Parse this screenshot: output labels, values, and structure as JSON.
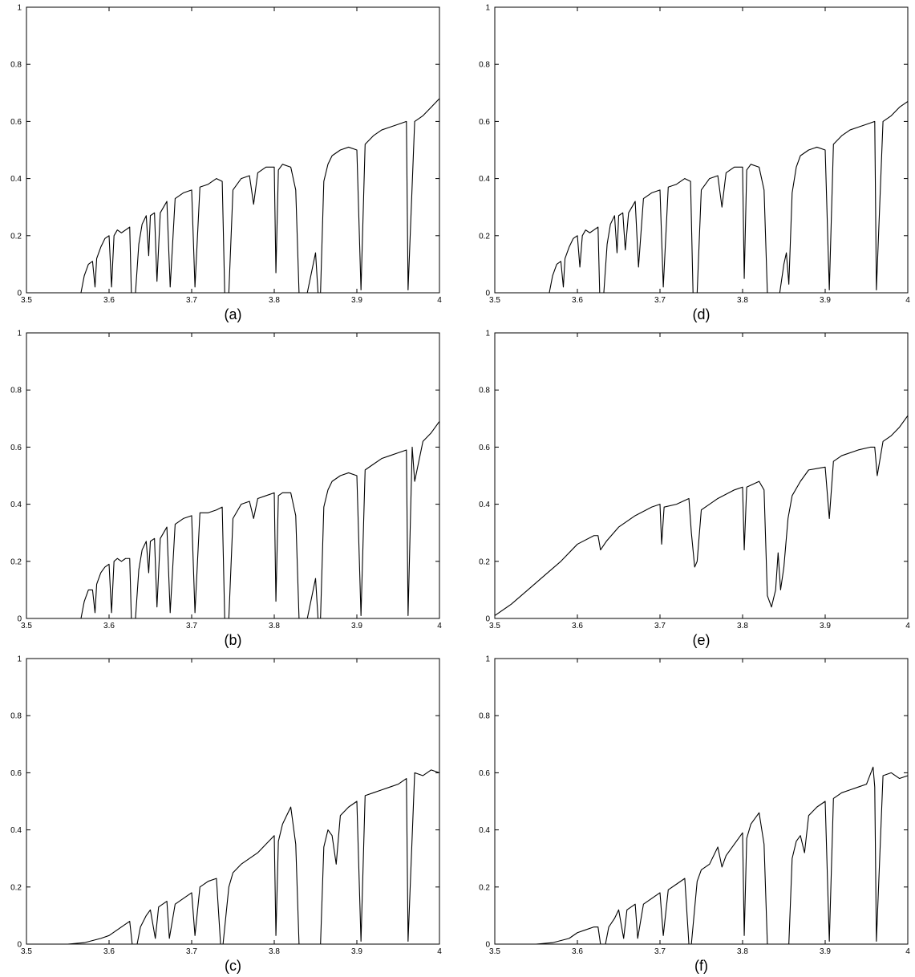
{
  "line_color": "#000000",
  "chart_data": [
    {
      "type": "line",
      "label": "(a)",
      "xlim": [
        3.5,
        4
      ],
      "ylim": [
        0,
        1
      ],
      "xticks": [
        "3.5",
        "3.6",
        "3.7",
        "3.8",
        "3.9",
        "4"
      ],
      "yticks": [
        "0",
        "0.2",
        "0.4",
        "0.6",
        "0.8",
        "1"
      ],
      "x": [
        3.5,
        3.566,
        3.57,
        3.575,
        3.58,
        3.583,
        3.585,
        3.59,
        3.595,
        3.6,
        3.603,
        3.606,
        3.61,
        3.615,
        3.62,
        3.625,
        3.627,
        3.632,
        3.636,
        3.64,
        3.645,
        3.648,
        3.65,
        3.655,
        3.658,
        3.662,
        3.666,
        3.67,
        3.674,
        3.68,
        3.69,
        3.7,
        3.704,
        3.71,
        3.72,
        3.73,
        3.737,
        3.74,
        3.745,
        3.75,
        3.76,
        3.77,
        3.775,
        3.78,
        3.79,
        3.8,
        3.802,
        3.805,
        3.81,
        3.82,
        3.826,
        3.83,
        3.84,
        3.85,
        3.853,
        3.856,
        3.86,
        3.865,
        3.87,
        3.88,
        3.89,
        3.9,
        3.905,
        3.91,
        3.92,
        3.93,
        3.94,
        3.95,
        3.96,
        3.962,
        3.97,
        3.98,
        3.99,
        4.0
      ],
      "y": [
        0,
        0,
        0.06,
        0.1,
        0.11,
        0.02,
        0.12,
        0.16,
        0.19,
        0.2,
        0.02,
        0.2,
        0.22,
        0.21,
        0.22,
        0.23,
        0.0,
        0.0,
        0.17,
        0.24,
        0.27,
        0.13,
        0.27,
        0.28,
        0.04,
        0.28,
        0.3,
        0.32,
        0.02,
        0.33,
        0.35,
        0.36,
        0.02,
        0.37,
        0.38,
        0.4,
        0.39,
        0.0,
        0.0,
        0.36,
        0.4,
        0.41,
        0.31,
        0.42,
        0.44,
        0.44,
        0.07,
        0.43,
        0.45,
        0.44,
        0.36,
        0.0,
        0.0,
        0.14,
        0.0,
        0.0,
        0.39,
        0.45,
        0.48,
        0.5,
        0.51,
        0.5,
        0.01,
        0.52,
        0.55,
        0.57,
        0.58,
        0.59,
        0.6,
        0.01,
        0.6,
        0.62,
        0.65,
        0.68
      ]
    },
    {
      "type": "line",
      "label": "(b)",
      "xlim": [
        3.5,
        4
      ],
      "ylim": [
        0,
        1
      ],
      "xticks": [
        "3.5",
        "3.6",
        "3.7",
        "3.8",
        "3.9",
        "4"
      ],
      "yticks": [
        "0",
        "0.2",
        "0.4",
        "0.6",
        "0.8",
        "1"
      ],
      "x": [
        3.5,
        3.566,
        3.57,
        3.575,
        3.58,
        3.583,
        3.585,
        3.59,
        3.595,
        3.6,
        3.603,
        3.606,
        3.61,
        3.615,
        3.62,
        3.625,
        3.627,
        3.632,
        3.636,
        3.64,
        3.645,
        3.648,
        3.65,
        3.655,
        3.658,
        3.662,
        3.666,
        3.67,
        3.674,
        3.68,
        3.69,
        3.7,
        3.704,
        3.71,
        3.72,
        3.73,
        3.737,
        3.74,
        3.745,
        3.75,
        3.76,
        3.77,
        3.775,
        3.78,
        3.79,
        3.8,
        3.802,
        3.805,
        3.81,
        3.82,
        3.826,
        3.83,
        3.84,
        3.85,
        3.853,
        3.856,
        3.86,
        3.865,
        3.87,
        3.88,
        3.89,
        3.9,
        3.905,
        3.91,
        3.92,
        3.93,
        3.94,
        3.95,
        3.96,
        3.962,
        3.967,
        3.97,
        3.98,
        3.99,
        4.0
      ],
      "y": [
        0,
        0,
        0.06,
        0.1,
        0.1,
        0.02,
        0.12,
        0.16,
        0.18,
        0.19,
        0.02,
        0.2,
        0.21,
        0.2,
        0.21,
        0.21,
        0.0,
        0.0,
        0.17,
        0.24,
        0.27,
        0.16,
        0.27,
        0.28,
        0.04,
        0.28,
        0.3,
        0.32,
        0.02,
        0.33,
        0.35,
        0.36,
        0.02,
        0.37,
        0.37,
        0.38,
        0.39,
        0.0,
        0.0,
        0.35,
        0.4,
        0.41,
        0.35,
        0.42,
        0.43,
        0.44,
        0.06,
        0.43,
        0.44,
        0.44,
        0.36,
        0.0,
        0.0,
        0.14,
        0.0,
        0.0,
        0.39,
        0.45,
        0.48,
        0.5,
        0.51,
        0.5,
        0.01,
        0.52,
        0.54,
        0.56,
        0.57,
        0.58,
        0.59,
        0.01,
        0.6,
        0.48,
        0.62,
        0.65,
        0.69
      ]
    },
    {
      "type": "line",
      "label": "(c)",
      "xlim": [
        3.5,
        4
      ],
      "ylim": [
        0,
        1
      ],
      "xticks": [
        "3.5",
        "3.6",
        "3.7",
        "3.8",
        "3.9",
        "4"
      ],
      "yticks": [
        "0",
        "0.2",
        "0.4",
        "0.6",
        "0.8",
        "1"
      ],
      "x": [
        3.5,
        3.55,
        3.57,
        3.59,
        3.6,
        3.61,
        3.62,
        3.625,
        3.628,
        3.634,
        3.638,
        3.645,
        3.65,
        3.656,
        3.66,
        3.67,
        3.673,
        3.68,
        3.69,
        3.7,
        3.704,
        3.71,
        3.72,
        3.73,
        3.735,
        3.738,
        3.745,
        3.75,
        3.76,
        3.77,
        3.78,
        3.79,
        3.8,
        3.802,
        3.805,
        3.81,
        3.815,
        3.82,
        3.826,
        3.83,
        3.85,
        3.856,
        3.86,
        3.865,
        3.87,
        3.875,
        3.88,
        3.89,
        3.9,
        3.905,
        3.91,
        3.92,
        3.93,
        3.94,
        3.95,
        3.96,
        3.962,
        3.97,
        3.98,
        3.99,
        4.0
      ],
      "y": [
        0,
        0.0,
        0.005,
        0.02,
        0.03,
        0.05,
        0.07,
        0.08,
        0.0,
        0.0,
        0.06,
        0.1,
        0.12,
        0.02,
        0.13,
        0.15,
        0.02,
        0.14,
        0.16,
        0.18,
        0.03,
        0.2,
        0.22,
        0.23,
        0.0,
        0.0,
        0.2,
        0.25,
        0.28,
        0.3,
        0.32,
        0.35,
        0.38,
        0.03,
        0.36,
        0.42,
        0.45,
        0.48,
        0.35,
        0.0,
        0.0,
        0.0,
        0.34,
        0.4,
        0.38,
        0.28,
        0.45,
        0.48,
        0.5,
        0.01,
        0.52,
        0.53,
        0.54,
        0.55,
        0.56,
        0.58,
        0.01,
        0.6,
        0.59,
        0.61,
        0.6
      ]
    },
    {
      "type": "line",
      "label": "(d)",
      "xlim": [
        3.5,
        4
      ],
      "ylim": [
        0,
        1
      ],
      "xticks": [
        "3.5",
        "3.6",
        "3.7",
        "3.8",
        "3.9",
        "4"
      ],
      "yticks": [
        "0",
        "0.2",
        "0.4",
        "0.6",
        "0.8",
        "1"
      ],
      "x": [
        3.5,
        3.566,
        3.57,
        3.575,
        3.58,
        3.583,
        3.585,
        3.59,
        3.595,
        3.6,
        3.603,
        3.606,
        3.61,
        3.615,
        3.62,
        3.625,
        3.627,
        3.632,
        3.636,
        3.64,
        3.645,
        3.648,
        3.65,
        3.655,
        3.658,
        3.662,
        3.666,
        3.67,
        3.674,
        3.68,
        3.69,
        3.7,
        3.704,
        3.71,
        3.72,
        3.73,
        3.737,
        3.74,
        3.745,
        3.75,
        3.76,
        3.77,
        3.775,
        3.78,
        3.79,
        3.8,
        3.802,
        3.805,
        3.81,
        3.82,
        3.826,
        3.83,
        3.845,
        3.85,
        3.853,
        3.856,
        3.86,
        3.865,
        3.87,
        3.88,
        3.89,
        3.9,
        3.905,
        3.91,
        3.92,
        3.93,
        3.94,
        3.95,
        3.96,
        3.962,
        3.97,
        3.98,
        3.99,
        4.0
      ],
      "y": [
        0,
        0,
        0.06,
        0.1,
        0.11,
        0.02,
        0.12,
        0.16,
        0.19,
        0.2,
        0.09,
        0.2,
        0.22,
        0.21,
        0.22,
        0.23,
        0.0,
        0.0,
        0.17,
        0.24,
        0.27,
        0.14,
        0.27,
        0.28,
        0.15,
        0.28,
        0.3,
        0.32,
        0.09,
        0.33,
        0.35,
        0.36,
        0.02,
        0.37,
        0.38,
        0.4,
        0.39,
        0.0,
        0.0,
        0.36,
        0.4,
        0.41,
        0.3,
        0.42,
        0.44,
        0.44,
        0.05,
        0.43,
        0.45,
        0.44,
        0.36,
        0.0,
        0.0,
        0.1,
        0.14,
        0.03,
        0.35,
        0.44,
        0.48,
        0.5,
        0.51,
        0.5,
        0.01,
        0.52,
        0.55,
        0.57,
        0.58,
        0.59,
        0.6,
        0.01,
        0.6,
        0.62,
        0.65,
        0.67
      ]
    },
    {
      "type": "line",
      "label": "(e)",
      "xlim": [
        3.5,
        4
      ],
      "ylim": [
        0,
        1
      ],
      "xticks": [
        "3.5",
        "3.6",
        "3.7",
        "3.8",
        "3.9",
        "4"
      ],
      "yticks": [
        "0",
        "0.2",
        "0.4",
        "0.6",
        "0.8",
        "1"
      ],
      "x": [
        3.5,
        3.52,
        3.54,
        3.56,
        3.58,
        3.6,
        3.62,
        3.625,
        3.628,
        3.635,
        3.65,
        3.67,
        3.69,
        3.7,
        3.702,
        3.705,
        3.72,
        3.735,
        3.738,
        3.742,
        3.745,
        3.75,
        3.77,
        3.79,
        3.8,
        3.802,
        3.805,
        3.82,
        3.826,
        3.83,
        3.835,
        3.84,
        3.843,
        3.846,
        3.85,
        3.855,
        3.86,
        3.87,
        3.88,
        3.9,
        3.905,
        3.91,
        3.92,
        3.94,
        3.955,
        3.96,
        3.963,
        3.97,
        3.98,
        3.99,
        4.0
      ],
      "y": [
        0.01,
        0.05,
        0.1,
        0.15,
        0.2,
        0.26,
        0.29,
        0.29,
        0.24,
        0.27,
        0.32,
        0.36,
        0.39,
        0.4,
        0.26,
        0.39,
        0.4,
        0.42,
        0.3,
        0.18,
        0.2,
        0.38,
        0.42,
        0.45,
        0.46,
        0.24,
        0.46,
        0.48,
        0.45,
        0.08,
        0.04,
        0.1,
        0.23,
        0.1,
        0.18,
        0.35,
        0.43,
        0.48,
        0.52,
        0.53,
        0.35,
        0.55,
        0.57,
        0.59,
        0.6,
        0.6,
        0.5,
        0.62,
        0.64,
        0.67,
        0.71
      ]
    },
    {
      "type": "line",
      "label": "(f)",
      "xlim": [
        3.5,
        4
      ],
      "ylim": [
        0,
        1
      ],
      "xticks": [
        "3.5",
        "3.6",
        "3.7",
        "3.8",
        "3.9",
        "4"
      ],
      "yticks": [
        "0",
        "0.2",
        "0.4",
        "0.6",
        "0.8",
        "1"
      ],
      "x": [
        3.5,
        3.55,
        3.57,
        3.59,
        3.6,
        3.61,
        3.62,
        3.625,
        3.628,
        3.634,
        3.638,
        3.645,
        3.65,
        3.656,
        3.66,
        3.67,
        3.673,
        3.68,
        3.69,
        3.7,
        3.704,
        3.71,
        3.72,
        3.73,
        3.735,
        3.738,
        3.745,
        3.75,
        3.76,
        3.77,
        3.775,
        3.78,
        3.79,
        3.8,
        3.802,
        3.805,
        3.81,
        3.815,
        3.82,
        3.826,
        3.83,
        3.85,
        3.856,
        3.86,
        3.865,
        3.87,
        3.875,
        3.88,
        3.89,
        3.9,
        3.905,
        3.91,
        3.92,
        3.93,
        3.94,
        3.95,
        3.958,
        3.96,
        3.962,
        3.97,
        3.98,
        3.99,
        4.0
      ],
      "y": [
        0,
        0.0,
        0.005,
        0.02,
        0.04,
        0.05,
        0.06,
        0.06,
        0.0,
        0.0,
        0.06,
        0.09,
        0.12,
        0.02,
        0.12,
        0.14,
        0.02,
        0.14,
        0.16,
        0.18,
        0.03,
        0.19,
        0.21,
        0.23,
        0.0,
        0.0,
        0.22,
        0.26,
        0.28,
        0.34,
        0.27,
        0.31,
        0.35,
        0.39,
        0.03,
        0.37,
        0.42,
        0.44,
        0.46,
        0.35,
        0.0,
        0.0,
        0.0,
        0.3,
        0.36,
        0.38,
        0.32,
        0.45,
        0.48,
        0.5,
        0.01,
        0.51,
        0.53,
        0.54,
        0.55,
        0.56,
        0.62,
        0.55,
        0.01,
        0.59,
        0.6,
        0.58,
        0.59
      ]
    }
  ]
}
